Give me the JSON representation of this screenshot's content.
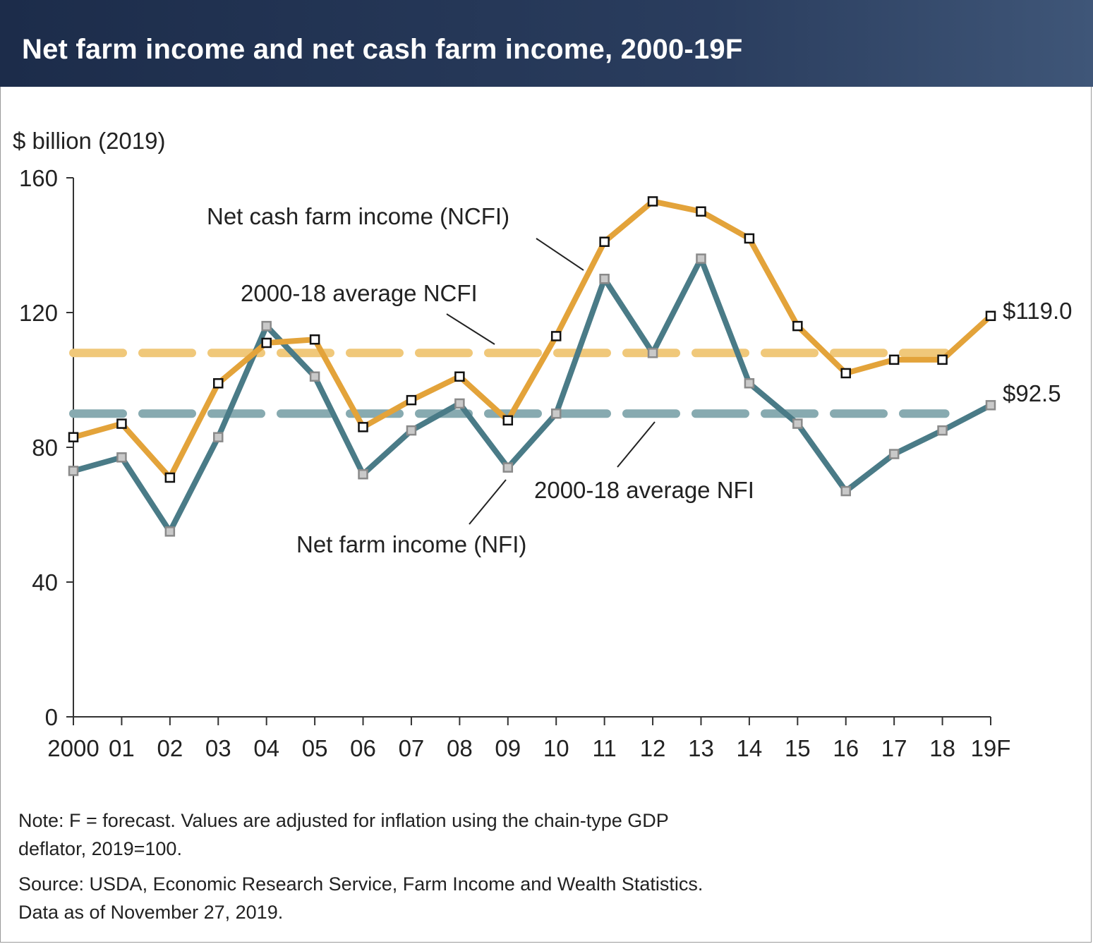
{
  "title": "Net farm income and net cash farm income, 2000-19F",
  "colors": {
    "header_bg": "#24365a",
    "ncfi": "#e3a33a",
    "ncfi_avg": "#f0c87a",
    "nfi": "#4a7b87",
    "nfi_avg": "#87aab0",
    "axis": "#333333"
  },
  "chart_data": {
    "type": "line",
    "ylabel": "$ billion (2019)",
    "ylim": [
      0,
      160
    ],
    "yticks": [
      "0",
      "40",
      "80",
      "120",
      "160"
    ],
    "categories": [
      "2000",
      "01",
      "02",
      "03",
      "04",
      "05",
      "06",
      "07",
      "08",
      "09",
      "10",
      "11",
      "12",
      "13",
      "14",
      "15",
      "16",
      "17",
      "18",
      "19F"
    ],
    "series": [
      {
        "name": "Net cash farm income (NCFI)",
        "values": [
          83,
          87,
          71,
          99,
          111,
          112,
          86,
          94,
          101,
          88,
          113,
          141,
          153,
          150,
          142,
          116,
          102,
          106,
          106,
          119.0
        ]
      },
      {
        "name": "Net farm income (NFI)",
        "values": [
          73,
          77,
          55,
          83,
          116,
          101,
          72,
          85,
          93,
          74,
          90,
          130,
          108,
          136,
          99,
          87,
          67,
          78,
          85,
          92.5
        ]
      }
    ],
    "averages": [
      {
        "name": "2000-18 average NCFI",
        "value": 108
      },
      {
        "name": "2000-18 average NFI",
        "value": 90
      }
    ],
    "end_labels": [
      "$119.0",
      "$92.5"
    ]
  },
  "note": {
    "line1": "Note: F = forecast. Values are adjusted for inflation using the chain-type GDP",
    "line2": "deflator, 2019=100."
  },
  "source": {
    "line1": "Source: USDA, Economic Research Service, Farm Income and Wealth Statistics.",
    "line2": "Data as of November 27, 2019."
  }
}
